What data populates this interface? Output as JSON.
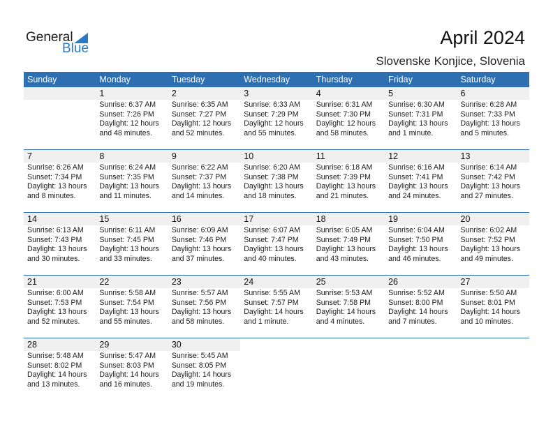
{
  "logo": {
    "text1": "General",
    "text2": "Blue"
  },
  "header": {
    "title": "April 2024",
    "location": "Slovenske Konjice, Slovenia"
  },
  "colors": {
    "accent": "#2e6fb1",
    "band": "#f0f0f0"
  },
  "weekdays": [
    "Sunday",
    "Monday",
    "Tuesday",
    "Wednesday",
    "Thursday",
    "Friday",
    "Saturday"
  ],
  "weeks": [
    [
      null,
      {
        "day": "1",
        "sunrise": "Sunrise: 6:37 AM",
        "sunset": "Sunset: 7:26 PM",
        "daylight1": "Daylight: 12 hours",
        "daylight2": "and 48 minutes."
      },
      {
        "day": "2",
        "sunrise": "Sunrise: 6:35 AM",
        "sunset": "Sunset: 7:27 PM",
        "daylight1": "Daylight: 12 hours",
        "daylight2": "and 52 minutes."
      },
      {
        "day": "3",
        "sunrise": "Sunrise: 6:33 AM",
        "sunset": "Sunset: 7:29 PM",
        "daylight1": "Daylight: 12 hours",
        "daylight2": "and 55 minutes."
      },
      {
        "day": "4",
        "sunrise": "Sunrise: 6:31 AM",
        "sunset": "Sunset: 7:30 PM",
        "daylight1": "Daylight: 12 hours",
        "daylight2": "and 58 minutes."
      },
      {
        "day": "5",
        "sunrise": "Sunrise: 6:30 AM",
        "sunset": "Sunset: 7:31 PM",
        "daylight1": "Daylight: 13 hours",
        "daylight2": "and 1 minute."
      },
      {
        "day": "6",
        "sunrise": "Sunrise: 6:28 AM",
        "sunset": "Sunset: 7:33 PM",
        "daylight1": "Daylight: 13 hours",
        "daylight2": "and 5 minutes."
      }
    ],
    [
      {
        "day": "7",
        "sunrise": "Sunrise: 6:26 AM",
        "sunset": "Sunset: 7:34 PM",
        "daylight1": "Daylight: 13 hours",
        "daylight2": "and 8 minutes."
      },
      {
        "day": "8",
        "sunrise": "Sunrise: 6:24 AM",
        "sunset": "Sunset: 7:35 PM",
        "daylight1": "Daylight: 13 hours",
        "daylight2": "and 11 minutes."
      },
      {
        "day": "9",
        "sunrise": "Sunrise: 6:22 AM",
        "sunset": "Sunset: 7:37 PM",
        "daylight1": "Daylight: 13 hours",
        "daylight2": "and 14 minutes."
      },
      {
        "day": "10",
        "sunrise": "Sunrise: 6:20 AM",
        "sunset": "Sunset: 7:38 PM",
        "daylight1": "Daylight: 13 hours",
        "daylight2": "and 18 minutes."
      },
      {
        "day": "11",
        "sunrise": "Sunrise: 6:18 AM",
        "sunset": "Sunset: 7:39 PM",
        "daylight1": "Daylight: 13 hours",
        "daylight2": "and 21 minutes."
      },
      {
        "day": "12",
        "sunrise": "Sunrise: 6:16 AM",
        "sunset": "Sunset: 7:41 PM",
        "daylight1": "Daylight: 13 hours",
        "daylight2": "and 24 minutes."
      },
      {
        "day": "13",
        "sunrise": "Sunrise: 6:14 AM",
        "sunset": "Sunset: 7:42 PM",
        "daylight1": "Daylight: 13 hours",
        "daylight2": "and 27 minutes."
      }
    ],
    [
      {
        "day": "14",
        "sunrise": "Sunrise: 6:13 AM",
        "sunset": "Sunset: 7:43 PM",
        "daylight1": "Daylight: 13 hours",
        "daylight2": "and 30 minutes."
      },
      {
        "day": "15",
        "sunrise": "Sunrise: 6:11 AM",
        "sunset": "Sunset: 7:45 PM",
        "daylight1": "Daylight: 13 hours",
        "daylight2": "and 33 minutes."
      },
      {
        "day": "16",
        "sunrise": "Sunrise: 6:09 AM",
        "sunset": "Sunset: 7:46 PM",
        "daylight1": "Daylight: 13 hours",
        "daylight2": "and 37 minutes."
      },
      {
        "day": "17",
        "sunrise": "Sunrise: 6:07 AM",
        "sunset": "Sunset: 7:47 PM",
        "daylight1": "Daylight: 13 hours",
        "daylight2": "and 40 minutes."
      },
      {
        "day": "18",
        "sunrise": "Sunrise: 6:05 AM",
        "sunset": "Sunset: 7:49 PM",
        "daylight1": "Daylight: 13 hours",
        "daylight2": "and 43 minutes."
      },
      {
        "day": "19",
        "sunrise": "Sunrise: 6:04 AM",
        "sunset": "Sunset: 7:50 PM",
        "daylight1": "Daylight: 13 hours",
        "daylight2": "and 46 minutes."
      },
      {
        "day": "20",
        "sunrise": "Sunrise: 6:02 AM",
        "sunset": "Sunset: 7:52 PM",
        "daylight1": "Daylight: 13 hours",
        "daylight2": "and 49 minutes."
      }
    ],
    [
      {
        "day": "21",
        "sunrise": "Sunrise: 6:00 AM",
        "sunset": "Sunset: 7:53 PM",
        "daylight1": "Daylight: 13 hours",
        "daylight2": "and 52 minutes."
      },
      {
        "day": "22",
        "sunrise": "Sunrise: 5:58 AM",
        "sunset": "Sunset: 7:54 PM",
        "daylight1": "Daylight: 13 hours",
        "daylight2": "and 55 minutes."
      },
      {
        "day": "23",
        "sunrise": "Sunrise: 5:57 AM",
        "sunset": "Sunset: 7:56 PM",
        "daylight1": "Daylight: 13 hours",
        "daylight2": "and 58 minutes."
      },
      {
        "day": "24",
        "sunrise": "Sunrise: 5:55 AM",
        "sunset": "Sunset: 7:57 PM",
        "daylight1": "Daylight: 14 hours",
        "daylight2": "and 1 minute."
      },
      {
        "day": "25",
        "sunrise": "Sunrise: 5:53 AM",
        "sunset": "Sunset: 7:58 PM",
        "daylight1": "Daylight: 14 hours",
        "daylight2": "and 4 minutes."
      },
      {
        "day": "26",
        "sunrise": "Sunrise: 5:52 AM",
        "sunset": "Sunset: 8:00 PM",
        "daylight1": "Daylight: 14 hours",
        "daylight2": "and 7 minutes."
      },
      {
        "day": "27",
        "sunrise": "Sunrise: 5:50 AM",
        "sunset": "Sunset: 8:01 PM",
        "daylight1": "Daylight: 14 hours",
        "daylight2": "and 10 minutes."
      }
    ],
    [
      {
        "day": "28",
        "sunrise": "Sunrise: 5:48 AM",
        "sunset": "Sunset: 8:02 PM",
        "daylight1": "Daylight: 14 hours",
        "daylight2": "and 13 minutes."
      },
      {
        "day": "29",
        "sunrise": "Sunrise: 5:47 AM",
        "sunset": "Sunset: 8:03 PM",
        "daylight1": "Daylight: 14 hours",
        "daylight2": "and 16 minutes."
      },
      {
        "day": "30",
        "sunrise": "Sunrise: 5:45 AM",
        "sunset": "Sunset: 8:05 PM",
        "daylight1": "Daylight: 14 hours",
        "daylight2": "and 19 minutes."
      },
      null,
      null,
      null,
      null
    ]
  ]
}
